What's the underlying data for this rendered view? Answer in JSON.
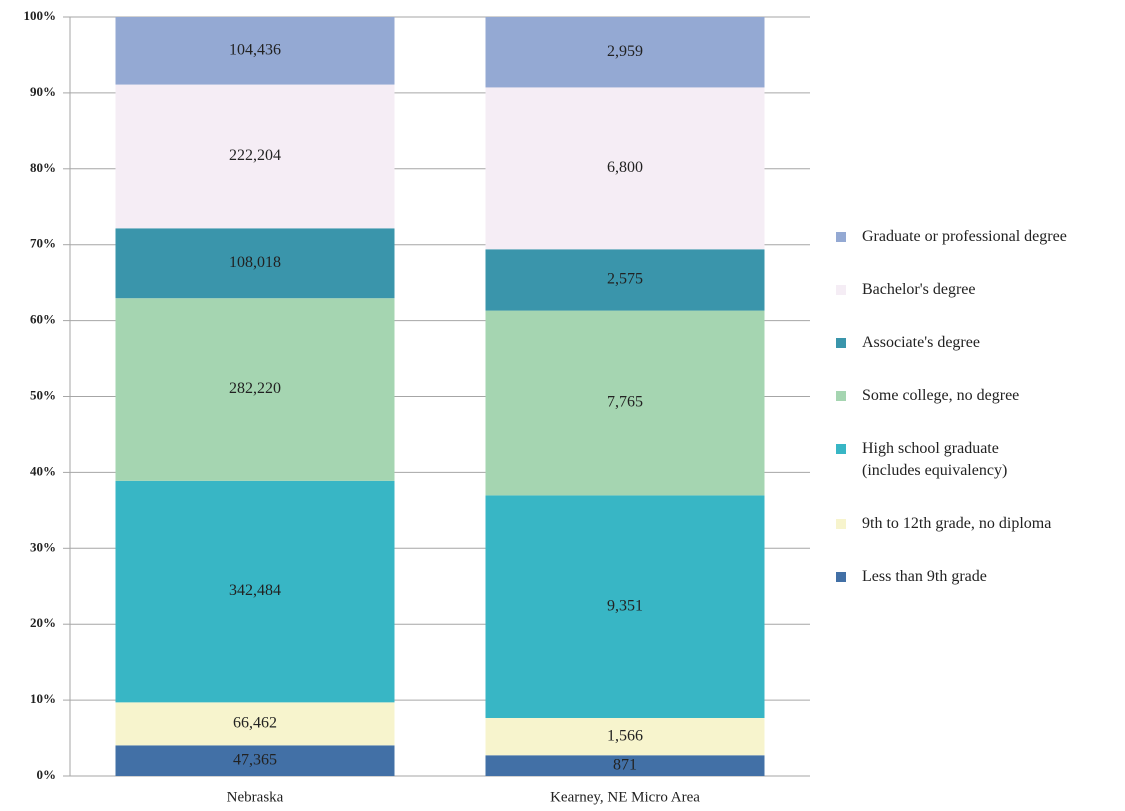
{
  "chart_data": {
    "type": "bar",
    "stacked": true,
    "normalized": true,
    "categories": [
      "Nebraska",
      "Kearney, NE Micro Area"
    ],
    "ylim": [
      0,
      100
    ],
    "yticks": [
      {
        "value": 0,
        "label": "0%"
      },
      {
        "value": 10,
        "label": "10%"
      },
      {
        "value": 20,
        "label": "20%"
      },
      {
        "value": 30,
        "label": "30%"
      },
      {
        "value": 40,
        "label": "40%"
      },
      {
        "value": 50,
        "label": "50%"
      },
      {
        "value": 60,
        "label": "60%"
      },
      {
        "value": 70,
        "label": "70%"
      },
      {
        "value": 80,
        "label": "80%"
      },
      {
        "value": 90,
        "label": "90%"
      },
      {
        "value": 100,
        "label": "100%"
      }
    ],
    "grid": true,
    "legend": "right",
    "series": [
      {
        "name": "Less than 9th grade",
        "color": "#4270a6",
        "values": [
          47365,
          871
        ],
        "value_labels": [
          "47,365",
          "871"
        ]
      },
      {
        "name": "9th to 12th grade, no diploma",
        "color": "#f7f4cd",
        "values": [
          66462,
          1566
        ],
        "value_labels": [
          "66,462",
          "1,566"
        ]
      },
      {
        "name": "High school graduate\n(includes equivalency)",
        "color": "#38b6c5",
        "values": [
          342484,
          9351
        ],
        "value_labels": [
          "342,484",
          "9,351"
        ]
      },
      {
        "name": "Some college, no degree",
        "color": "#a5d5b1",
        "values": [
          282220,
          7765
        ],
        "value_labels": [
          "282,220",
          "7,765"
        ]
      },
      {
        "name": "Associate's degree",
        "color": "#3a95ab",
        "values": [
          108018,
          2575
        ],
        "value_labels": [
          "108,018",
          "2,575"
        ]
      },
      {
        "name": "Bachelor's degree",
        "color": "#f5edf5",
        "values": [
          222204,
          6800
        ],
        "value_labels": [
          "222,204",
          "6,800"
        ]
      },
      {
        "name": "Graduate or professional degree",
        "color": "#94a9d3",
        "values": [
          104436,
          2959
        ],
        "value_labels": [
          "104,436",
          "2,959"
        ]
      }
    ]
  }
}
